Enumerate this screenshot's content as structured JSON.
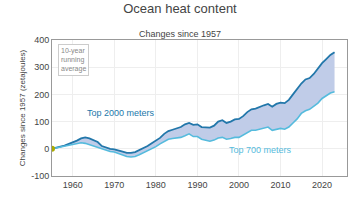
{
  "chart_data": {
    "type": "line",
    "title": "Ocean heat content",
    "subtitle": "Changes since 1957",
    "ylabel": "Changes since 1957 (zetajoules)",
    "annotation": "10-year\nrunning\naverage",
    "x": [
      1955,
      1956,
      1957,
      1958,
      1959,
      1960,
      1961,
      1962,
      1963,
      1964,
      1965,
      1966,
      1967,
      1968,
      1969,
      1970,
      1971,
      1972,
      1973,
      1974,
      1975,
      1976,
      1977,
      1978,
      1979,
      1980,
      1981,
      1982,
      1983,
      1984,
      1985,
      1986,
      1987,
      1988,
      1989,
      1990,
      1991,
      1992,
      1993,
      1994,
      1995,
      1996,
      1997,
      1998,
      1999,
      2000,
      2001,
      2002,
      2003,
      2004,
      2005,
      2006,
      2007,
      2008,
      2009,
      2010,
      2011,
      2012,
      2013,
      2014,
      2015,
      2016,
      2017,
      2018,
      2019,
      2020,
      2021,
      2022,
      2023
    ],
    "series": [
      {
        "name": "Top 2000 meters",
        "color": "#2277aa",
        "values": [
          0,
          5,
          8,
          12,
          18,
          22,
          30,
          38,
          42,
          38,
          32,
          25,
          10,
          5,
          0,
          -2,
          -5,
          -10,
          -15,
          -15,
          -12,
          -5,
          0,
          10,
          20,
          30,
          40,
          55,
          65,
          70,
          75,
          80,
          90,
          95,
          88,
          90,
          80,
          80,
          78,
          85,
          100,
          105,
          95,
          100,
          108,
          110,
          120,
          135,
          145,
          148,
          155,
          160,
          165,
          155,
          165,
          170,
          168,
          180,
          200,
          220,
          240,
          255,
          260,
          275,
          295,
          315,
          330,
          345,
          355
        ]
      },
      {
        "name": "Top 700 meters",
        "color": "#55bbdd",
        "values": [
          0,
          3,
          5,
          8,
          12,
          15,
          18,
          22,
          20,
          15,
          10,
          5,
          0,
          -5,
          -10,
          -12,
          -18,
          -22,
          -28,
          -30,
          -28,
          -22,
          -15,
          -8,
          0,
          8,
          18,
          28,
          35,
          38,
          40,
          42,
          48,
          55,
          45,
          45,
          35,
          32,
          28,
          32,
          40,
          42,
          35,
          38,
          42,
          42,
          50,
          60,
          68,
          68,
          72,
          75,
          80,
          68,
          72,
          75,
          72,
          80,
          95,
          110,
          130,
          140,
          145,
          155,
          168,
          185,
          195,
          205,
          210
        ]
      }
    ],
    "fill_between": {
      "color": "#c0cce8"
    },
    "start_point": {
      "x": 1955,
      "y": 0,
      "color": "#aaaa00"
    },
    "xlim": [
      1955,
      2026
    ],
    "xticks": [
      1960,
      1970,
      1980,
      1990,
      2000,
      2010,
      2020
    ],
    "ylim": [
      -100,
      400
    ],
    "yticks": [
      -100,
      0,
      100,
      200,
      300,
      400
    ],
    "grid": true
  }
}
